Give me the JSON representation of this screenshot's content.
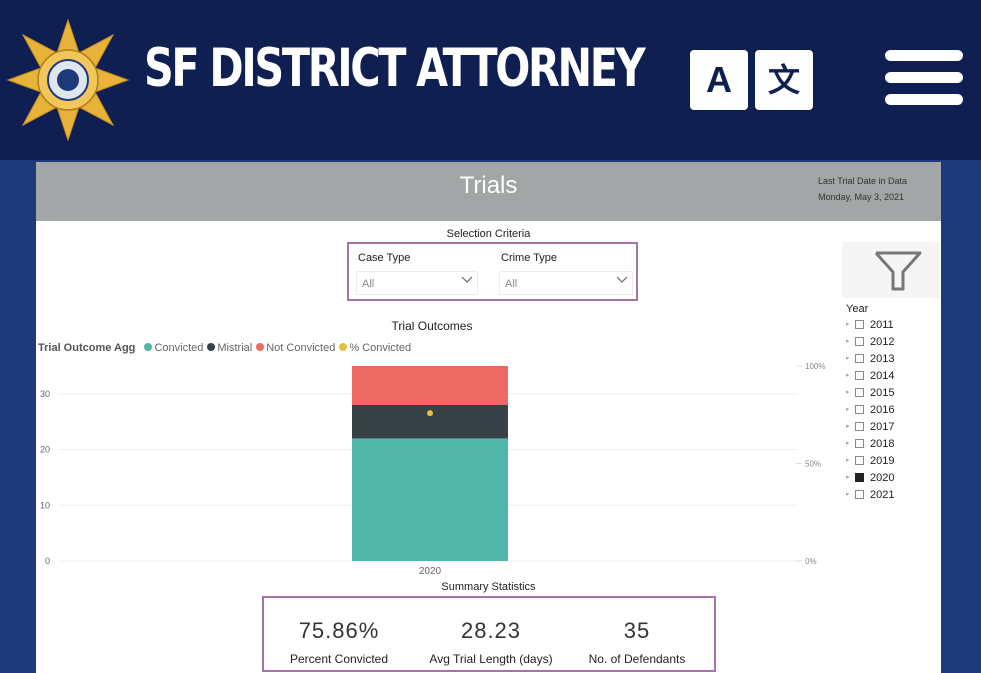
{
  "header": {
    "site_title": "SF DISTRICT ATTORNEY",
    "translate_a": "A",
    "translate_b": "文",
    "brand_color": "#0f1f52",
    "badge_color": "#e8b33a"
  },
  "report": {
    "title": "Trials",
    "last_trial_label": "Last Trial Date in Data",
    "last_trial_value": "Monday, May 3, 2021"
  },
  "selection": {
    "label": "Selection Criteria",
    "case_type": {
      "label": "Case Type",
      "value": "All"
    },
    "crime_type": {
      "label": "Crime Type",
      "value": "All"
    }
  },
  "year_filter": {
    "label": "Year",
    "years": [
      {
        "year": "2011",
        "checked": false
      },
      {
        "year": "2012",
        "checked": false
      },
      {
        "year": "2013",
        "checked": false
      },
      {
        "year": "2014",
        "checked": false
      },
      {
        "year": "2015",
        "checked": false
      },
      {
        "year": "2016",
        "checked": false
      },
      {
        "year": "2017",
        "checked": false
      },
      {
        "year": "2018",
        "checked": false
      },
      {
        "year": "2019",
        "checked": false
      },
      {
        "year": "2020",
        "checked": true
      },
      {
        "year": "2021",
        "checked": false
      }
    ]
  },
  "chart_data": {
    "type": "bar",
    "title": "Trial Outcomes",
    "legend_title": "Trial Outcome Agg",
    "categories": [
      "2020"
    ],
    "series": [
      {
        "name": "Convicted",
        "values": [
          22
        ],
        "color": "#4fb6a8"
      },
      {
        "name": "Mistrial",
        "values": [
          6
        ],
        "color": "#374246"
      },
      {
        "name": "Not Convicted",
        "values": [
          7
        ],
        "color": "#ec6a63"
      },
      {
        "name": "% Convicted",
        "values": [
          75.86
        ],
        "color": "#e8c23d",
        "axis": "secondary"
      }
    ],
    "ylim": [
      0,
      35
    ],
    "yticks": [
      0,
      10,
      20,
      30
    ],
    "y2lim": [
      0,
      100
    ],
    "y2ticks": [
      "0%",
      "50%",
      "100%"
    ]
  },
  "summary": {
    "label": "Summary Statistics",
    "stats": [
      {
        "value": "75.86%",
        "label": "Percent Convicted"
      },
      {
        "value": "28.23",
        "label": "Avg Trial Length (days)"
      },
      {
        "value": "35",
        "label": "No. of Defendants"
      }
    ]
  }
}
